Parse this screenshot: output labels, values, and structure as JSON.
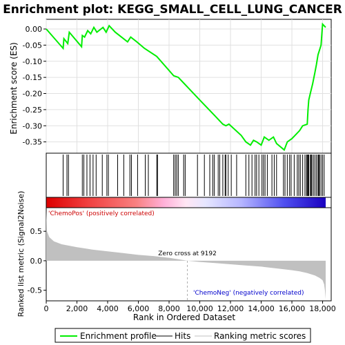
{
  "chart_data": {
    "type": "line",
    "title": "Enrichment plot: KEGG_SMALL_CELL_LUNG_CANCER",
    "es_panel": {
      "ylabel": "Enrichment score (ES)",
      "yticks": [
        0.0,
        -0.05,
        -0.1,
        -0.15,
        -0.2,
        -0.25,
        -0.3,
        -0.35
      ],
      "ytick_labels": [
        "0.00",
        "-0.05",
        "-0.10",
        "-0.15",
        "-0.20",
        "-0.25",
        "-0.30",
        "-0.35"
      ],
      "ylim": [
        -0.385,
        0.03
      ],
      "grid": true
    },
    "x_axis": {
      "xlabel": "Rank in Ordered Dataset",
      "xlim": [
        0,
        19000
      ],
      "xticks": [
        0,
        2000,
        4000,
        6000,
        8000,
        10000,
        12000,
        14000,
        16000,
        18000
      ],
      "xtick_labels": [
        "0",
        "2,000",
        "4,000",
        "6,000",
        "8,000",
        "10,000",
        "12,000",
        "14,000",
        "16,000",
        "18,000"
      ]
    },
    "metric_panel": {
      "ylabel": "Ranked list metric (Signal2Noise)",
      "yticks": [
        0.5,
        0.0,
        -0.5
      ],
      "ytick_labels": [
        "0.5",
        "0.0",
        "-0.5"
      ],
      "ylim": [
        -0.68,
        0.9
      ],
      "zero_cross_label": "Zero cross at 9192",
      "zero_cross": 9192,
      "pos_label": "'ChemoPos' (positively correlated)",
      "neg_label": "'ChemoNeg' (negatively correlated)",
      "pos_color": "#cc0000",
      "neg_color": "#0000cc"
    },
    "series": [
      {
        "name": "Enrichment profile",
        "color": "#00ee00",
        "x": [
          0,
          1100,
          1150,
          1400,
          1500,
          2300,
          2350,
          2500,
          2700,
          2900,
          3100,
          3300,
          3700,
          3900,
          4100,
          4500,
          4900,
          5300,
          5500,
          5900,
          6400,
          7200,
          8300,
          8600,
          9000,
          10000,
          11000,
          11500,
          11700,
          11900,
          12700,
          13000,
          13300,
          13500,
          13700,
          14000,
          14200,
          14500,
          14800,
          15000,
          15500,
          15700,
          16000,
          16200,
          16500,
          16700,
          17000,
          17050,
          17100,
          17200,
          17350,
          17500,
          17600,
          17700,
          17900,
          18000,
          18200
        ],
        "y": [
          0.0,
          -0.06,
          -0.03,
          -0.045,
          -0.01,
          -0.055,
          -0.02,
          -0.025,
          -0.005,
          -0.015,
          0.005,
          -0.01,
          0.005,
          -0.01,
          0.01,
          -0.01,
          -0.025,
          -0.04,
          -0.025,
          -0.04,
          -0.06,
          -0.085,
          -0.145,
          -0.15,
          -0.17,
          -0.22,
          -0.27,
          -0.295,
          -0.3,
          -0.295,
          -0.33,
          -0.35,
          -0.36,
          -0.345,
          -0.35,
          -0.36,
          -0.335,
          -0.345,
          -0.335,
          -0.355,
          -0.375,
          -0.35,
          -0.34,
          -0.33,
          -0.315,
          -0.3,
          -0.295,
          -0.25,
          -0.22,
          -0.2,
          -0.17,
          -0.135,
          -0.11,
          -0.08,
          -0.05,
          0.015,
          0.005
        ]
      },
      {
        "name": "Hits",
        "color": "#000000",
        "x": [
          1100,
          1350,
          1450,
          2350,
          2450,
          2650,
          2850,
          3050,
          3250,
          3650,
          3950,
          4050,
          4650,
          5050,
          5450,
          5550,
          5950,
          6450,
          6650,
          7200,
          7250,
          8300,
          8400,
          8500,
          8600,
          8950,
          9050,
          9850,
          10300,
          10650,
          10850,
          10950,
          11200,
          11300,
          11500,
          11650,
          11700,
          11850,
          12050,
          12400,
          13000,
          13200,
          13400,
          13600,
          13700,
          13850,
          14050,
          14150,
          14250,
          14400,
          14700,
          14850,
          15000,
          15450,
          15550,
          15700,
          15850,
          15950,
          16150,
          16350,
          16450,
          16550,
          16700,
          16850,
          16950,
          17000,
          17050,
          17100,
          17200,
          17250,
          17300,
          17400,
          17500,
          17600,
          17700,
          17750,
          17800,
          17900,
          18000,
          18100
        ]
      },
      {
        "name": "Ranking metric scores",
        "color": "#c0c0c0",
        "x": [
          0,
          50,
          200,
          500,
          1000,
          2000,
          3000,
          4000,
          5000,
          6000,
          7000,
          8000,
          9192,
          10000,
          11000,
          12000,
          13000,
          14000,
          15000,
          16000,
          16500,
          17000,
          17500,
          17800,
          18000,
          18100,
          18150,
          18200
        ],
        "y": [
          0.85,
          0.5,
          0.4,
          0.33,
          0.28,
          0.23,
          0.19,
          0.16,
          0.13,
          0.1,
          0.08,
          0.05,
          0.0,
          -0.02,
          -0.04,
          -0.06,
          -0.08,
          -0.1,
          -0.13,
          -0.16,
          -0.18,
          -0.21,
          -0.25,
          -0.29,
          -0.33,
          -0.4,
          -0.5,
          -0.65
        ]
      }
    ]
  }
}
